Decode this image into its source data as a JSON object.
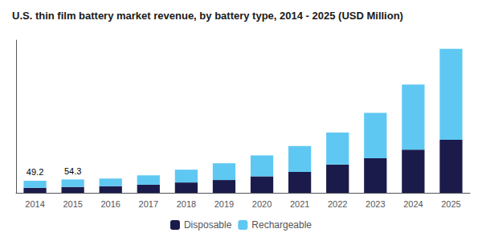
{
  "chart_data": {
    "type": "bar",
    "title": "U.S. thin film battery market revenue, by battery type, 2014 - 2025 (USD Million)",
    "categories": [
      "2014",
      "2015",
      "2016",
      "2017",
      "2018",
      "2019",
      "2020",
      "2021",
      "2022",
      "2023",
      "2024",
      "2025"
    ],
    "series": [
      {
        "name": "Disposable",
        "color": "#1b1b4b",
        "values": [
          20.0,
          24.0,
          27.0,
          33.0,
          42.0,
          52.0,
          67.0,
          85.0,
          115.0,
          140.0,
          175.0,
          215.0
        ]
      },
      {
        "name": "Rechargeable",
        "color": "#5ec8f2",
        "values": [
          29.2,
          30.3,
          31.0,
          38.0,
          52.0,
          68.0,
          85.0,
          105.0,
          130.0,
          185.0,
          265.0,
          370.0
        ]
      }
    ],
    "stacked": true,
    "ylim": [
      0,
      620
    ],
    "grid": false,
    "legend": "bottom",
    "tick_labels": "x",
    "annotations": [
      {
        "category": "2014",
        "text": "49.2"
      },
      {
        "category": "2015",
        "text": "54.3"
      }
    ]
  }
}
